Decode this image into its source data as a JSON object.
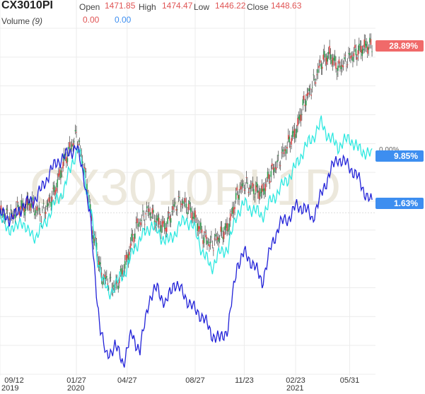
{
  "header": {
    "symbol": "CX3010PI",
    "open_label": "Open",
    "open": "1471.85",
    "high_label": "High",
    "high": "1474.47",
    "low_label": "Low",
    "low": "1446.22",
    "close_label": "Close",
    "close": "1448.63",
    "volume_label": "Volume",
    "volume_period": "(9)",
    "vol_value_1": "0.00",
    "vol_value_2": "0.00"
  },
  "watermark": "CX3010PI 1D",
  "zero_label": "0.00%",
  "colors": {
    "candle_up": "#2e9e4f",
    "candle_down": "#e04747",
    "series_cyan": "#2ee8e0",
    "series_blue": "#2222d8",
    "badge_red": "#f06a6a",
    "badge_blue": "#3d8ef0",
    "grid": "#ececec"
  },
  "badges": [
    {
      "label": "28.89%",
      "color": "badge_red"
    },
    {
      "label": "9.85%",
      "color": "badge_blue"
    },
    {
      "label": "1.63%",
      "color": "badge_blue"
    }
  ],
  "x_ticks": [
    "09/12",
    "01/27",
    "04/27",
    "08/27",
    "11/23",
    "02/23",
    "05/31"
  ],
  "x_years": [
    "2019",
    "2020",
    "2021"
  ],
  "chart_data": {
    "type": "line",
    "x_start": "2019-09-12",
    "x_end": "2021-07-15",
    "y_unit": "%",
    "series": [
      {
        "style": "candlestick",
        "color": "candle_main",
        "points": [
          [
            "2019-09-12",
            0.0
          ],
          [
            "2019-09-20",
            -0.3
          ],
          [
            "2019-10-05",
            -0.5
          ],
          [
            "2019-10-15",
            1.0
          ],
          [
            "2019-10-25",
            0.8
          ],
          [
            "2019-11-05",
            1.8
          ],
          [
            "2019-11-15",
            0.5
          ],
          [
            "2019-11-25",
            -0.2
          ],
          [
            "2019-12-05",
            1.0
          ],
          [
            "2019-12-20",
            4.0
          ],
          [
            "2020-01-05",
            9.0
          ],
          [
            "2020-01-15",
            11.0
          ],
          [
            "2020-01-27",
            13.5
          ],
          [
            "2020-02-05",
            10.0
          ],
          [
            "2020-02-15",
            5.0
          ],
          [
            "2020-02-25",
            -3.0
          ],
          [
            "2020-03-05",
            -7.0
          ],
          [
            "2020-03-12",
            -11.0
          ],
          [
            "2020-03-25",
            -12.0
          ],
          [
            "2020-04-05",
            -13.0
          ],
          [
            "2020-04-15",
            -11.0
          ],
          [
            "2020-04-27",
            -8.0
          ],
          [
            "2020-05-05",
            -5.0
          ],
          [
            "2020-05-15",
            -2.0
          ],
          [
            "2020-05-25",
            -1.0
          ],
          [
            "2020-06-05",
            0.5
          ],
          [
            "2020-06-15",
            -1.0
          ],
          [
            "2020-06-25",
            -2.0
          ],
          [
            "2020-07-05",
            -2.5
          ],
          [
            "2020-07-20",
            1.0
          ],
          [
            "2020-08-01",
            2.0
          ],
          [
            "2020-08-15",
            1.0
          ],
          [
            "2020-08-27",
            -1.0
          ],
          [
            "2020-09-10",
            -4.0
          ],
          [
            "2020-09-25",
            -5.5
          ],
          [
            "2020-10-10",
            -4.0
          ],
          [
            "2020-10-25",
            -2.5
          ],
          [
            "2020-11-10",
            3.0
          ],
          [
            "2020-11-23",
            5.0
          ],
          [
            "2020-12-10",
            4.0
          ],
          [
            "2020-12-25",
            3.5
          ],
          [
            "2021-01-10",
            7.0
          ],
          [
            "2021-01-25",
            9.0
          ],
          [
            "2021-02-10",
            12.0
          ],
          [
            "2021-02-23",
            14.0
          ],
          [
            "2021-03-10",
            19.0
          ],
          [
            "2021-03-25",
            22.0
          ],
          [
            "2021-04-10",
            26.0
          ],
          [
            "2021-04-25",
            27.5
          ],
          [
            "2021-05-10",
            25.0
          ],
          [
            "2021-05-31",
            27.0
          ],
          [
            "2021-06-15",
            28.0
          ],
          [
            "2021-06-30",
            29.0
          ],
          [
            "2021-07-10",
            28.89
          ]
        ]
      },
      {
        "style": "line",
        "color": "series_cyan",
        "points": [
          [
            "2019-09-12",
            -1.0
          ],
          [
            "2019-09-25",
            -2.5
          ],
          [
            "2019-10-10",
            -3.0
          ],
          [
            "2019-10-20",
            -1.0
          ],
          [
            "2019-11-01",
            -3.5
          ],
          [
            "2019-11-15",
            -4.0
          ],
          [
            "2019-12-01",
            -2.0
          ],
          [
            "2019-12-15",
            1.0
          ],
          [
            "2020-01-05",
            4.0
          ],
          [
            "2020-01-20",
            9.0
          ],
          [
            "2020-01-30",
            11.0
          ],
          [
            "2020-02-10",
            7.0
          ],
          [
            "2020-02-25",
            -2.0
          ],
          [
            "2020-03-05",
            -8.0
          ],
          [
            "2020-03-15",
            -12.0
          ],
          [
            "2020-03-25",
            -14.0
          ],
          [
            "2020-04-10",
            -12.0
          ],
          [
            "2020-04-27",
            -9.5
          ],
          [
            "2020-05-10",
            -6.0
          ],
          [
            "2020-05-25",
            -4.0
          ],
          [
            "2020-06-10",
            -2.0
          ],
          [
            "2020-06-25",
            -4.0
          ],
          [
            "2020-07-10",
            -5.0
          ],
          [
            "2020-07-25",
            -3.0
          ],
          [
            "2020-08-10",
            -1.0
          ],
          [
            "2020-08-27",
            -3.0
          ],
          [
            "2020-09-10",
            -7.0
          ],
          [
            "2020-09-25",
            -9.5
          ],
          [
            "2020-10-10",
            -7.0
          ],
          [
            "2020-10-25",
            -6.0
          ],
          [
            "2020-11-10",
            0.0
          ],
          [
            "2020-11-23",
            1.5
          ],
          [
            "2020-12-10",
            0.5
          ],
          [
            "2020-12-25",
            -0.5
          ],
          [
            "2021-01-10",
            2.0
          ],
          [
            "2021-01-25",
            4.0
          ],
          [
            "2021-02-10",
            6.0
          ],
          [
            "2021-02-23",
            8.0
          ],
          [
            "2021-03-10",
            11.0
          ],
          [
            "2021-03-25",
            13.0
          ],
          [
            "2021-04-10",
            15.5
          ],
          [
            "2021-04-25",
            13.0
          ],
          [
            "2021-05-10",
            11.5
          ],
          [
            "2021-05-31",
            13.0
          ],
          [
            "2021-06-15",
            11.0
          ],
          [
            "2021-06-30",
            10.5
          ],
          [
            "2021-07-10",
            9.85
          ]
        ]
      },
      {
        "style": "line",
        "color": "series_blue",
        "points": [
          [
            "2019-09-12",
            0.0
          ],
          [
            "2019-09-25",
            -1.0
          ],
          [
            "2019-10-10",
            -0.5
          ],
          [
            "2019-10-25",
            1.5
          ],
          [
            "2019-11-10",
            2.0
          ],
          [
            "2019-11-25",
            4.0
          ],
          [
            "2019-12-10",
            7.0
          ],
          [
            "2019-12-25",
            9.0
          ],
          [
            "2020-01-10",
            10.0
          ],
          [
            "2020-01-27",
            11.5
          ],
          [
            "2020-02-10",
            6.0
          ],
          [
            "2020-02-20",
            0.0
          ],
          [
            "2020-03-01",
            -12.0
          ],
          [
            "2020-03-10",
            -20.0
          ],
          [
            "2020-03-20",
            -25.0
          ],
          [
            "2020-04-05",
            -23.0
          ],
          [
            "2020-04-20",
            -26.0
          ],
          [
            "2020-05-05",
            -21.0
          ],
          [
            "2020-05-20",
            -24.0
          ],
          [
            "2020-06-05",
            -15.0
          ],
          [
            "2020-06-20",
            -13.0
          ],
          [
            "2020-07-05",
            -16.0
          ],
          [
            "2020-07-20",
            -12.0
          ],
          [
            "2020-08-05",
            -14.0
          ],
          [
            "2020-08-27",
            -17.0
          ],
          [
            "2020-09-10",
            -18.0
          ],
          [
            "2020-09-25",
            -21.0
          ],
          [
            "2020-10-10",
            -22.0
          ],
          [
            "2020-10-25",
            -20.0
          ],
          [
            "2020-11-10",
            -9.0
          ],
          [
            "2020-11-23",
            -7.0
          ],
          [
            "2020-12-10",
            -9.0
          ],
          [
            "2020-12-25",
            -12.0
          ],
          [
            "2021-01-10",
            -6.0
          ],
          [
            "2021-01-25",
            -2.0
          ],
          [
            "2021-02-10",
            -1.0
          ],
          [
            "2021-02-23",
            1.0
          ],
          [
            "2021-03-10",
            1.0
          ],
          [
            "2021-03-25",
            -1.0
          ],
          [
            "2021-04-10",
            3.0
          ],
          [
            "2021-04-25",
            7.0
          ],
          [
            "2021-05-10",
            9.5
          ],
          [
            "2021-05-31",
            8.0
          ],
          [
            "2021-06-15",
            6.0
          ],
          [
            "2021-06-30",
            3.0
          ],
          [
            "2021-07-10",
            1.63
          ]
        ]
      }
    ],
    "ylim": [
      -28,
      32
    ]
  }
}
